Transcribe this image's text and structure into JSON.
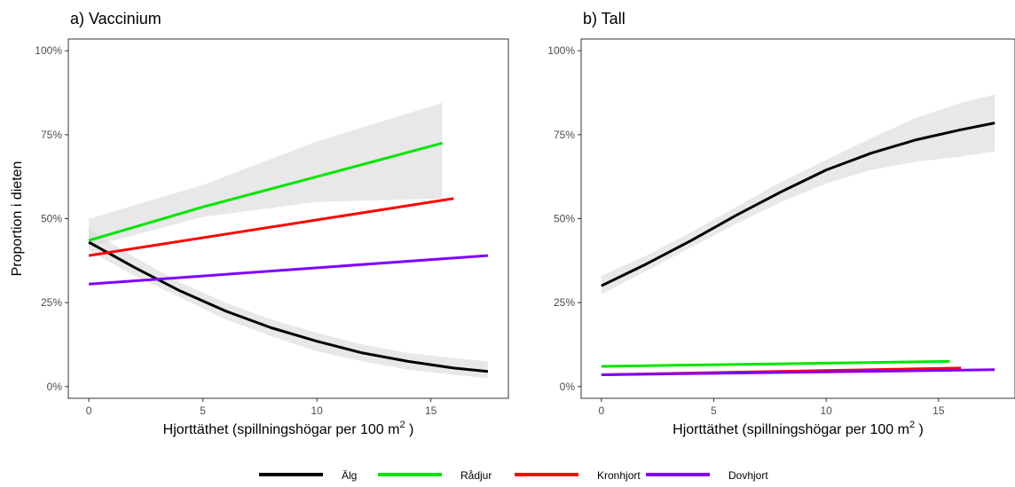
{
  "chart_data": [
    {
      "type": "line",
      "title": "a) Vaccinium",
      "xlabel_parts": [
        "Hjorttäthet (spillningshögar per 100 m",
        "2",
        " )"
      ],
      "ylabel": "Proportion i dieten",
      "xlim": [
        -0.9,
        18.4
      ],
      "ylim": [
        -0.035,
        1.035
      ],
      "xticks": [
        0,
        5,
        10,
        15
      ],
      "xtick_labels": [
        "0",
        "5",
        "10",
        "15"
      ],
      "yticks": [
        0,
        0.25,
        0.5,
        0.75,
        1.0
      ],
      "ytick_labels": [
        "0%",
        "25%",
        "50%",
        "75%",
        "100%"
      ],
      "grid": false,
      "series": [
        {
          "name": "Älg",
          "color": "#000000",
          "x": [
            0,
            2,
            4,
            6,
            8,
            10,
            12,
            14,
            16,
            17.5
          ],
          "y": [
            0.43,
            0.355,
            0.285,
            0.225,
            0.175,
            0.135,
            0.1,
            0.075,
            0.055,
            0.045
          ],
          "ci_lower": [
            0.405,
            0.33,
            0.265,
            0.2,
            0.15,
            0.105,
            0.075,
            0.05,
            0.035,
            0.025
          ],
          "ci_upper": [
            0.47,
            0.385,
            0.31,
            0.25,
            0.2,
            0.16,
            0.125,
            0.1,
            0.085,
            0.075
          ]
        },
        {
          "name": "Rådjur",
          "color": "#00e600",
          "x": [
            0,
            5,
            10,
            15.5
          ],
          "y": [
            0.435,
            0.535,
            0.625,
            0.725
          ],
          "ci_lower": [
            0.415,
            0.505,
            0.55,
            0.56
          ],
          "ci_upper": [
            0.5,
            0.6,
            0.73,
            0.845
          ]
        },
        {
          "name": "Kronhjort",
          "color": "#ff0000",
          "x": [
            0,
            16
          ],
          "y": [
            0.39,
            0.56
          ]
        },
        {
          "name": "Dovhjort",
          "color": "#8000ff",
          "x": [
            0,
            17.5
          ],
          "y": [
            0.305,
            0.39
          ]
        }
      ]
    },
    {
      "type": "line",
      "title": "b) Tall",
      "xlabel_parts": [
        "Hjorttäthet (spillningshögar per 100 m",
        "2",
        " )"
      ],
      "ylabel": "",
      "xlim": [
        -0.9,
        18.4
      ],
      "ylim": [
        -0.035,
        1.035
      ],
      "xticks": [
        0,
        5,
        10,
        15
      ],
      "xtick_labels": [
        "0",
        "5",
        "10",
        "15"
      ],
      "yticks": [
        0,
        0.25,
        0.5,
        0.75,
        1.0
      ],
      "ytick_labels": [
        "0%",
        "25%",
        "50%",
        "75%",
        "100%"
      ],
      "grid": false,
      "series": [
        {
          "name": "Älg",
          "color": "#000000",
          "x": [
            0,
            2,
            4,
            6,
            8,
            10,
            12,
            14,
            16,
            17.5
          ],
          "y": [
            0.3,
            0.365,
            0.435,
            0.51,
            0.58,
            0.645,
            0.695,
            0.735,
            0.765,
            0.785
          ],
          "ci_lower": [
            0.275,
            0.345,
            0.415,
            0.485,
            0.55,
            0.605,
            0.645,
            0.67,
            0.685,
            0.7
          ],
          "ci_upper": [
            0.33,
            0.39,
            0.46,
            0.535,
            0.61,
            0.675,
            0.74,
            0.8,
            0.845,
            0.87
          ]
        },
        {
          "name": "Rådjur",
          "color": "#00e600",
          "x": [
            0,
            15.5
          ],
          "y": [
            0.06,
            0.075
          ]
        },
        {
          "name": "Kronhjort",
          "color": "#ff0000",
          "x": [
            0,
            16
          ],
          "y": [
            0.035,
            0.055
          ]
        },
        {
          "name": "Dovhjort",
          "color": "#8000ff",
          "x": [
            0,
            17.5
          ],
          "y": [
            0.035,
            0.05
          ]
        }
      ]
    }
  ],
  "legend": {
    "position": "bottom",
    "items": [
      {
        "label": "Älg",
        "color": "#000000"
      },
      {
        "label": "Rådjur",
        "color": "#00e600"
      },
      {
        "label": "Kronhjort",
        "color": "#ff0000"
      },
      {
        "label": "Dovhjort",
        "color": "#8000ff"
      }
    ]
  }
}
